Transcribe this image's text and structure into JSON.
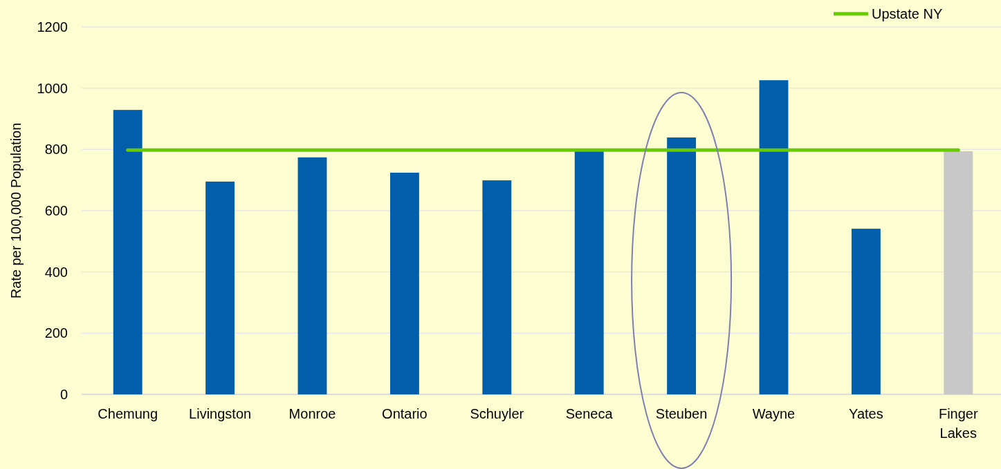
{
  "chart_data": {
    "type": "bar",
    "ylabel": "Rate per 100,000 Population",
    "categories": [
      "Chemung",
      "Livingston",
      "Monroe",
      "Ontario",
      "Schuyler",
      "Seneca",
      "Steuben",
      "Wayne",
      "Yates",
      "Finger Lakes"
    ],
    "series": [
      {
        "colors": [
          "#005eaa",
          "#005eaa",
          "#005eaa",
          "#005eaa",
          "#005eaa",
          "#005eaa",
          "#005eaa",
          "#005eaa",
          "#005eaa",
          "#c8c8c8"
        ],
        "values": [
          929,
          695,
          774,
          724,
          699,
          795,
          839,
          1026,
          541,
          794
        ]
      },
      {
        "type": "line",
        "name": "Upstate NY",
        "color": "#66cc00",
        "values": [
          798,
          798,
          798,
          798,
          798,
          798,
          798,
          798,
          798,
          798
        ]
      }
    ],
    "ylim": [
      0,
      1200
    ],
    "yticks": [
      0,
      200,
      400,
      600,
      800,
      1000,
      1200
    ],
    "grid": "y",
    "legend": "top right"
  }
}
